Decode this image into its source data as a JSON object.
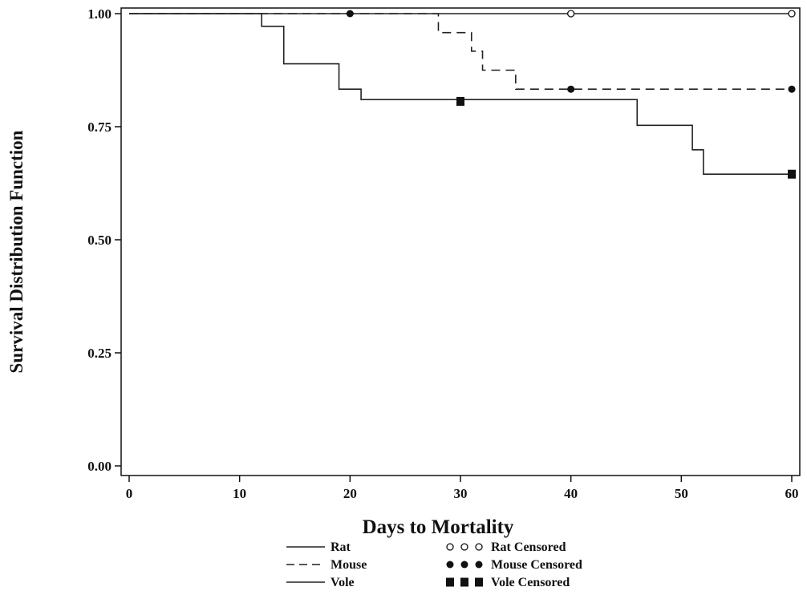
{
  "chart_data": {
    "type": "line",
    "subtype": "kaplan-meier step plot",
    "xlabel": "Days to Mortality",
    "ylabel": "Survival Distribution Function",
    "xlim": [
      0,
      60
    ],
    "ylim": [
      0,
      1
    ],
    "x_ticks": [
      "0",
      "10",
      "20",
      "30",
      "40",
      "50",
      "60"
    ],
    "y_ticks": [
      "0.00",
      "0.25",
      "0.50",
      "0.75",
      "1.00"
    ],
    "grid": false,
    "legend_position": "bottom",
    "series": [
      {
        "name": "Rat",
        "line_style": "solid",
        "points": [
          [
            0,
            1.0
          ],
          [
            60,
            1.0
          ]
        ],
        "censored": [
          [
            40,
            1.0
          ],
          [
            60,
            1.0
          ]
        ]
      },
      {
        "name": "Mouse",
        "line_style": "dashed",
        "points": [
          [
            0,
            1.0
          ],
          [
            28,
            0.958
          ],
          [
            31,
            0.917
          ],
          [
            32,
            0.875
          ],
          [
            35,
            0.833
          ],
          [
            60,
            0.833
          ]
        ],
        "censored": [
          [
            20,
            1.0
          ],
          [
            40,
            0.833
          ],
          [
            60,
            0.833
          ]
        ]
      },
      {
        "name": "Vole",
        "line_style": "solid",
        "points": [
          [
            0,
            1.0
          ],
          [
            12,
            0.972
          ],
          [
            14,
            0.889
          ],
          [
            19,
            0.833
          ],
          [
            21,
            0.81
          ],
          [
            46,
            0.753
          ],
          [
            51,
            0.699
          ],
          [
            52,
            0.645
          ],
          [
            60,
            0.645
          ]
        ],
        "censored": [
          [
            30,
            0.806
          ],
          [
            60,
            0.645
          ]
        ]
      }
    ],
    "legend": {
      "lines": [
        {
          "label": "Rat",
          "style": "solid"
        },
        {
          "label": "Mouse",
          "style": "dashed"
        },
        {
          "label": "Vole",
          "style": "solid"
        }
      ],
      "markers": [
        {
          "label": "Rat Censored",
          "marker": "open-circle"
        },
        {
          "label": "Mouse Censored",
          "marker": "filled-circle"
        },
        {
          "label": "Vole Censored",
          "marker": "filled-square"
        }
      ]
    }
  }
}
